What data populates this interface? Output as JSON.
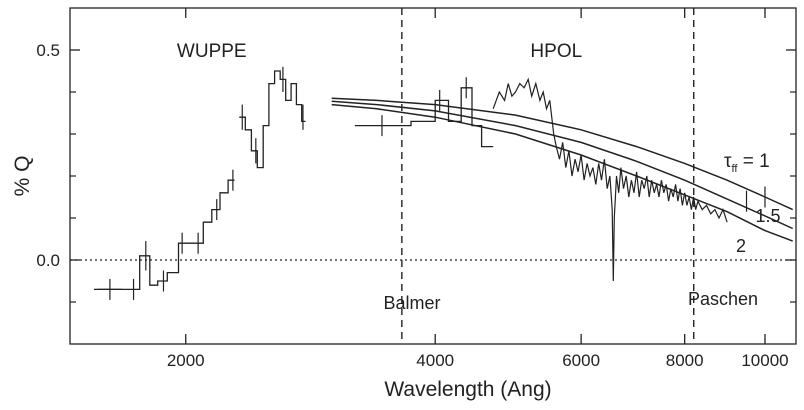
{
  "chart_data": {
    "type": "line",
    "x_scale": "log",
    "xlabel": "Wavelength (Ang)",
    "ylabel": "% Q",
    "xlim": [
      1450,
      10900
    ],
    "ylim": [
      -0.2,
      0.6
    ],
    "grid": false,
    "x_ticks": [
      {
        "value": 2000,
        "label": "2000"
      },
      {
        "value": 4000,
        "label": "4000"
      },
      {
        "value": 6000,
        "label": "6000"
      },
      {
        "value": 8000,
        "label": "8000"
      },
      {
        "value": 10000,
        "label": "10000"
      }
    ],
    "y_ticks": [
      {
        "value": 0.0,
        "label": "0.0"
      },
      {
        "value": 0.5,
        "label": "0.5"
      }
    ],
    "y_minor_ticks": [
      -0.1,
      0.1,
      0.2,
      0.3,
      0.4
    ],
    "annotations": {
      "wuppe": {
        "text": "WUPPE",
        "x": 2150,
        "y": 0.5
      },
      "hpol": {
        "text": "HPOL",
        "x": 5600,
        "y": 0.5
      },
      "balmer": {
        "text": "Balmer",
        "x": 3750,
        "y": -0.1
      },
      "paschen": {
        "text": "Paschen",
        "x": 8900,
        "y": -0.09
      }
    },
    "vertical_lines": [
      {
        "x": 3646,
        "label": "Balmer"
      },
      {
        "x": 8204,
        "label": "Paschen"
      }
    ],
    "zero_line": 0.0,
    "model_curves": [
      {
        "label_parts": [
          "τ",
          "ff",
          " = 1"
        ],
        "x": [
          3000,
          3400,
          4000,
          5000,
          6000,
          7000,
          8000,
          9000,
          10000,
          10800
        ],
        "values": [
          0.385,
          0.38,
          0.37,
          0.345,
          0.31,
          0.27,
          0.23,
          0.19,
          0.15,
          0.12
        ]
      },
      {
        "label": "1.5",
        "x": [
          3000,
          3400,
          4000,
          5000,
          6000,
          7000,
          8000,
          9000,
          10000,
          10800
        ],
        "values": [
          0.378,
          0.37,
          0.355,
          0.32,
          0.28,
          0.235,
          0.19,
          0.145,
          0.105,
          0.075
        ]
      },
      {
        "label": "2",
        "x": [
          3000,
          3400,
          4000,
          5000,
          6000,
          7000,
          8000,
          9000,
          10000,
          10800
        ],
        "values": [
          0.37,
          0.36,
          0.34,
          0.3,
          0.25,
          0.2,
          0.155,
          0.115,
          0.07,
          0.045
        ]
      }
    ],
    "wuppe_series": {
      "bins": [
        {
          "x0": 1550,
          "x1": 1690,
          "y": -0.07
        },
        {
          "x0": 1690,
          "x1": 1760,
          "y": -0.07
        },
        {
          "x0": 1760,
          "x1": 1810,
          "y": 0.01
        },
        {
          "x0": 1810,
          "x1": 1850,
          "y": -0.06
        },
        {
          "x0": 1850,
          "x1": 1900,
          "y": -0.05
        },
        {
          "x0": 1900,
          "x1": 1960,
          "y": -0.03
        },
        {
          "x0": 1960,
          "x1": 2030,
          "y": 0.04
        },
        {
          "x0": 2030,
          "x1": 2100,
          "y": 0.04
        },
        {
          "x0": 2100,
          "x1": 2150,
          "y": 0.09
        },
        {
          "x0": 2150,
          "x1": 2200,
          "y": 0.12
        },
        {
          "x0": 2200,
          "x1": 2250,
          "y": 0.16
        },
        {
          "x0": 2250,
          "x1": 2290,
          "y": 0.19
        },
        {
          "x0": 2320,
          "x1": 2360,
          "y": 0.34
        },
        {
          "x0": 2360,
          "x1": 2400,
          "y": 0.31
        },
        {
          "x0": 2400,
          "x1": 2440,
          "y": 0.26
        },
        {
          "x0": 2440,
          "x1": 2480,
          "y": 0.22
        },
        {
          "x0": 2480,
          "x1": 2520,
          "y": 0.32
        },
        {
          "x0": 2520,
          "x1": 2560,
          "y": 0.42
        },
        {
          "x0": 2560,
          "x1": 2600,
          "y": 0.45
        },
        {
          "x0": 2600,
          "x1": 2640,
          "y": 0.43
        },
        {
          "x0": 2640,
          "x1": 2680,
          "y": 0.38
        },
        {
          "x0": 2680,
          "x1": 2720,
          "y": 0.42
        },
        {
          "x0": 2720,
          "x1": 2760,
          "y": 0.37
        },
        {
          "x0": 2760,
          "x1": 2790,
          "y": 0.33
        }
      ],
      "error_bars": [
        {
          "x": 1620,
          "y": -0.07,
          "dx": 55,
          "err": 0.025
        },
        {
          "x": 1730,
          "y": -0.07,
          "dx": 0,
          "err": 0.025
        },
        {
          "x": 1790,
          "y": 0.01,
          "dx": 0,
          "err": 0.035
        },
        {
          "x": 1880,
          "y": -0.05,
          "dx": 0,
          "err": 0.025
        },
        {
          "x": 1980,
          "y": 0.04,
          "dx": 0,
          "err": 0.025
        },
        {
          "x": 2070,
          "y": 0.04,
          "dx": 0,
          "err": 0.025
        },
        {
          "x": 2180,
          "y": 0.12,
          "dx": 0,
          "err": 0.025
        },
        {
          "x": 2280,
          "y": 0.19,
          "dx": 0,
          "err": 0.025
        },
        {
          "x": 2340,
          "y": 0.34,
          "dx": 0,
          "err": 0.03
        },
        {
          "x": 2430,
          "y": 0.26,
          "dx": 0,
          "err": 0.03
        },
        {
          "x": 2620,
          "y": 0.43,
          "dx": 0,
          "err": 0.03
        },
        {
          "x": 2770,
          "y": 0.34,
          "dx": 0,
          "err": 0.03
        }
      ]
    },
    "hpol_series": {
      "bins": [
        {
          "x0": 3200,
          "x1": 3740,
          "y": 0.32
        },
        {
          "x0": 3740,
          "x1": 4000,
          "y": 0.33
        },
        {
          "x0": 4000,
          "x1": 4150,
          "y": 0.38
        },
        {
          "x0": 4150,
          "x1": 4300,
          "y": 0.33
        },
        {
          "x0": 4300,
          "x1": 4430,
          "y": 0.41
        },
        {
          "x0": 4430,
          "x1": 4550,
          "y": 0.32
        },
        {
          "x0": 4550,
          "x1": 4700,
          "y": 0.27
        }
      ],
      "error_bars": [
        {
          "x": 3450,
          "y": 0.32,
          "dx": 0,
          "err": 0.025
        },
        {
          "x": 4050,
          "y": 0.38,
          "dx": 0,
          "err": 0.025
        },
        {
          "x": 4360,
          "y": 0.41,
          "dx": 0,
          "err": 0.025
        },
        {
          "x": 9500,
          "y": 0.14,
          "dx": 0,
          "err": 0.025
        },
        {
          "x": 10000,
          "y": 0.15,
          "dx": 0,
          "err": 0.025
        }
      ],
      "spectrum": [
        [
          4700,
          0.36
        ],
        [
          4780,
          0.4
        ],
        [
          4850,
          0.38
        ],
        [
          4900,
          0.42
        ],
        [
          4950,
          0.39
        ],
        [
          5000,
          0.4
        ],
        [
          5060,
          0.42
        ],
        [
          5120,
          0.41
        ],
        [
          5180,
          0.43
        ],
        [
          5230,
          0.39
        ],
        [
          5290,
          0.42
        ],
        [
          5350,
          0.38
        ],
        [
          5400,
          0.4
        ],
        [
          5450,
          0.36
        ],
        [
          5500,
          0.38
        ],
        [
          5560,
          0.3
        ],
        [
          5600,
          0.27
        ],
        [
          5650,
          0.24
        ],
        [
          5700,
          0.28
        ],
        [
          5750,
          0.22
        ],
        [
          5800,
          0.26
        ],
        [
          5850,
          0.2
        ],
        [
          5900,
          0.24
        ],
        [
          5950,
          0.21
        ],
        [
          6000,
          0.25
        ],
        [
          6050,
          0.19
        ],
        [
          6100,
          0.23
        ],
        [
          6150,
          0.2
        ],
        [
          6200,
          0.22
        ],
        [
          6250,
          0.18
        ],
        [
          6300,
          0.23
        ],
        [
          6350,
          0.19
        ],
        [
          6400,
          0.24
        ],
        [
          6450,
          0.17
        ],
        [
          6500,
          0.2
        ],
        [
          6540,
          0.12
        ],
        [
          6560,
          -0.05
        ],
        [
          6580,
          0.1
        ],
        [
          6620,
          0.2
        ],
        [
          6660,
          0.16
        ],
        [
          6700,
          0.22
        ],
        [
          6750,
          0.17
        ],
        [
          6800,
          0.2
        ],
        [
          6850,
          0.15
        ],
        [
          6900,
          0.19
        ],
        [
          6950,
          0.16
        ],
        [
          7000,
          0.21
        ],
        [
          7050,
          0.15
        ],
        [
          7100,
          0.19
        ],
        [
          7150,
          0.17
        ],
        [
          7200,
          0.2
        ],
        [
          7250,
          0.15
        ],
        [
          7300,
          0.19
        ],
        [
          7350,
          0.16
        ],
        [
          7400,
          0.18
        ],
        [
          7450,
          0.15
        ],
        [
          7500,
          0.19
        ],
        [
          7550,
          0.16
        ],
        [
          7600,
          0.18
        ],
        [
          7650,
          0.14
        ],
        [
          7700,
          0.17
        ],
        [
          7750,
          0.15
        ],
        [
          7800,
          0.18
        ],
        [
          7850,
          0.14
        ],
        [
          7900,
          0.17
        ],
        [
          7950,
          0.13
        ],
        [
          8000,
          0.16
        ],
        [
          8050,
          0.13
        ],
        [
          8100,
          0.15
        ],
        [
          8150,
          0.12
        ],
        [
          8200,
          0.15
        ],
        [
          8250,
          0.12
        ],
        [
          8300,
          0.14
        ],
        [
          8400,
          0.12
        ],
        [
          8500,
          0.13
        ],
        [
          8600,
          0.11
        ],
        [
          8700,
          0.12
        ],
        [
          8800,
          0.1
        ],
        [
          8900,
          0.12
        ],
        [
          9000,
          0.09
        ]
      ]
    }
  }
}
